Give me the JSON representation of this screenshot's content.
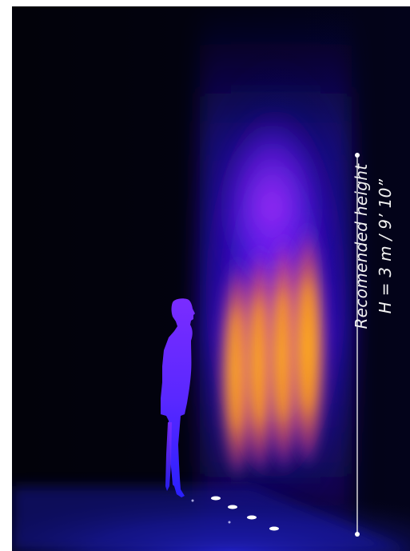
{
  "illustration": {
    "height_label": {
      "line1": "Recomended height",
      "line2": "H = 3 m / 9’ 10”"
    },
    "colors": {
      "background": "#02020c",
      "beam_core": "#ffa21a",
      "beam_glow": "#9a2cff",
      "haze": "#2a1aff",
      "floor": "#1a1ab0",
      "figure_top": "#7a2cff",
      "figure_bottom": "#2a20ff",
      "dimension_line": "#e6e6e6",
      "label_text": "#f2f2f2"
    },
    "icons": [
      "person-silhouette",
      "floor-uplight",
      "dimension-line"
    ]
  }
}
